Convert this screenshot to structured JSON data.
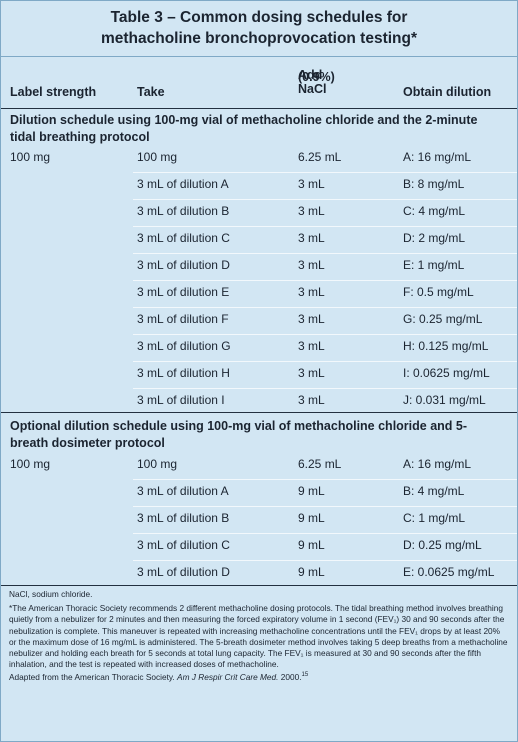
{
  "title": {
    "line1": "Table 3 – Common dosing schedules for",
    "line2": "methacholine bronchoprovocation testing*"
  },
  "columns": {
    "label_strength": "Label strength",
    "take": "Take",
    "add_nacl_line1": "Add NaCl",
    "add_nacl_line2": "(0.9%)",
    "obtain_dilution": "Obtain dilution"
  },
  "section1": {
    "title": "Dilution schedule using 100-mg vial of methacholine chloride and the 2-minute tidal breathing protocol",
    "label_strength": "100 mg",
    "rows": [
      {
        "take": "100 mg",
        "nacl": "6.25 mL",
        "dilution": "A: 16 mg/mL"
      },
      {
        "take": "3 mL of dilution A",
        "nacl": "3 mL",
        "dilution": "B: 8 mg/mL"
      },
      {
        "take": "3 mL of dilution B",
        "nacl": "3 mL",
        "dilution": "C: 4 mg/mL"
      },
      {
        "take": "3 mL of dilution C",
        "nacl": "3 mL",
        "dilution": "D: 2 mg/mL"
      },
      {
        "take": "3 mL of dilution D",
        "nacl": "3 mL",
        "dilution": "E: 1 mg/mL"
      },
      {
        "take": "3 mL of dilution E",
        "nacl": "3 mL",
        "dilution": "F: 0.5 mg/mL"
      },
      {
        "take": "3 mL of dilution F",
        "nacl": "3 mL",
        "dilution": "G: 0.25 mg/mL"
      },
      {
        "take": "3 mL of dilution G",
        "nacl": "3 mL",
        "dilution": "H: 0.125 mg/mL"
      },
      {
        "take": "3 mL of dilution H",
        "nacl": "3 mL",
        "dilution": "I: 0.0625 mg/mL"
      },
      {
        "take": "3 mL of dilution I",
        "nacl": "3 mL",
        "dilution": "J: 0.031 mg/mL"
      }
    ]
  },
  "section2": {
    "title": "Optional dilution schedule using 100-mg vial of methacholine chloride and 5-breath dosimeter protocol",
    "label_strength": "100 mg",
    "rows": [
      {
        "take": "100 mg",
        "nacl": "6.25 mL",
        "dilution": "A: 16 mg/mL"
      },
      {
        "take": "3 mL of dilution A",
        "nacl": "9 mL",
        "dilution": "B: 4 mg/mL"
      },
      {
        "take": "3 mL of dilution B",
        "nacl": "9 mL",
        "dilution": "C: 1 mg/mL"
      },
      {
        "take": "3 mL of dilution C",
        "nacl": "9 mL",
        "dilution": "D: 0.25 mg/mL"
      },
      {
        "take": "3 mL of dilution D",
        "nacl": "9 mL",
        "dilution": "E: 0.0625 mg/mL"
      }
    ]
  },
  "notes": {
    "abbrev": "NaCl, sodium chloride.",
    "footnote": "*The American Thoracic Society recommends 2 different methacholine dosing protocols. The tidal breathing method involves breathing quietly from a nebulizer for 2 minutes and then measuring the forced expiratory volume in 1 second (FEV₁) 30 and 90 seconds after the nebulization is complete. This maneuver is repeated with increasing methacholine concentrations until the FEV₁ drops by at least 20% or the maximum dose of 16 mg/mL is administered. The 5-breath dosimeter method involves taking 5 deep breaths from a methacholine nebulizer and holding each breath for 5 seconds at total lung capacity. The FEV₁ is measured at 30 and 90 seconds after the fifth inhalation, and the test is repeated with increased doses of methacholine.",
    "source_prefix": "Adapted from the American Thoracic Society.",
    "source_journal": "Am J Respir Crit Care Med.",
    "source_year": "2000.",
    "source_ref": "15"
  }
}
